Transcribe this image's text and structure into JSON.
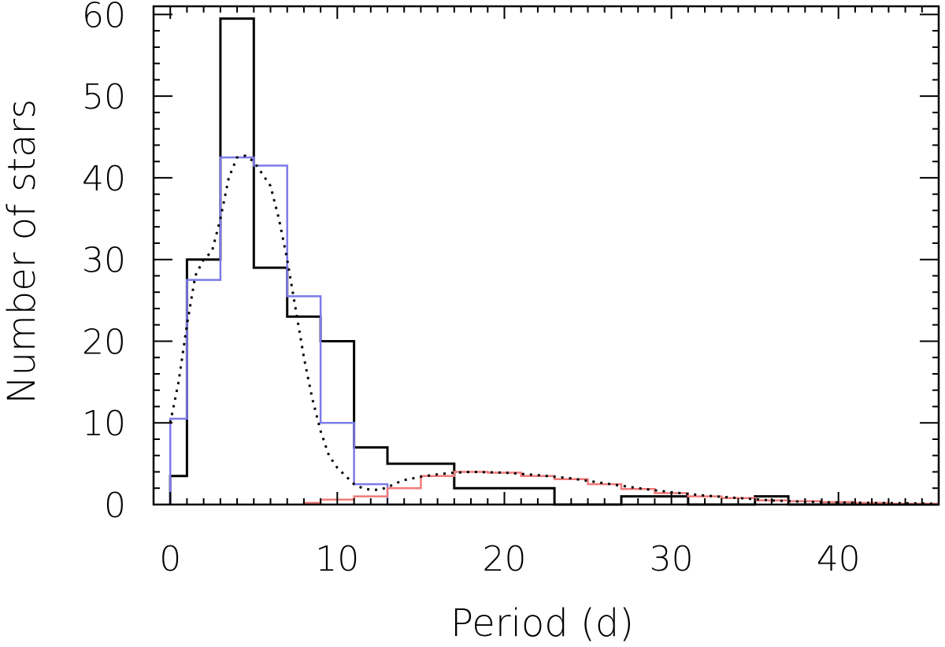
{
  "chart_data": {
    "type": "line",
    "title": "",
    "xlabel": "Period (d)",
    "ylabel": "Number of stars",
    "xlim": [
      -1,
      46
    ],
    "ylim": [
      0,
      61
    ],
    "xticks": [
      0,
      10,
      20,
      30,
      40
    ],
    "xtick_labels": [
      "0",
      "10",
      "20",
      "30",
      "40"
    ],
    "yticks": [
      0,
      10,
      20,
      30,
      40,
      50,
      60
    ],
    "ytick_labels": [
      "0",
      "10",
      "20",
      "30",
      "40",
      "50",
      "60"
    ],
    "x_minor_step": 1,
    "y_minor_step": 2,
    "grid": false,
    "legend": "none",
    "series": [
      {
        "style": "histogram",
        "color": "#000000",
        "edges": [
          0,
          1,
          3,
          5,
          7,
          9,
          11,
          13,
          17,
          23,
          27,
          31,
          35,
          37,
          46
        ],
        "values": [
          3.5,
          30,
          59.5,
          29,
          23,
          20,
          7,
          5,
          2,
          0,
          1,
          0,
          1,
          0
        ]
      },
      {
        "style": "histogram",
        "color": "#7b7bea",
        "edges": [
          0,
          1,
          3,
          5,
          7,
          9,
          11,
          13,
          14
        ],
        "values": [
          10.5,
          27.5,
          42.5,
          41.5,
          25.5,
          10,
          2.5,
          0
        ]
      },
      {
        "style": "histogram",
        "color": "#f07a7a",
        "edges": [
          8,
          9,
          11,
          13,
          15,
          17,
          19,
          21,
          23,
          25,
          27,
          29,
          31,
          33,
          35,
          37,
          39,
          41,
          43,
          46
        ],
        "values": [
          0.2,
          0.6,
          1,
          2,
          3.5,
          4,
          3.9,
          3.5,
          3.1,
          2.5,
          1.9,
          1.4,
          1,
          0.8,
          0.5,
          0.4,
          0.3,
          0.2,
          0.1
        ]
      },
      {
        "style": "dotted",
        "color": "#000000",
        "x": [
          0,
          0.5,
          1,
          1.5,
          2,
          2.5,
          3,
          3.5,
          4,
          4.5,
          5,
          5.5,
          6,
          6.5,
          7,
          7.5,
          8,
          8.5,
          9,
          9.5,
          10,
          10.5,
          11,
          11.5,
          12,
          12.5,
          13,
          13.5,
          14,
          15,
          16,
          17,
          18,
          20,
          22,
          24,
          26,
          28,
          30,
          32,
          34,
          36,
          38,
          40,
          42,
          44,
          46
        ],
        "y": [
          10,
          15,
          22,
          28,
          30,
          31,
          35,
          40,
          42.5,
          42.7,
          42,
          40.5,
          39,
          35,
          30,
          24,
          18,
          13,
          9,
          6,
          4.5,
          3.5,
          2.5,
          2,
          1.8,
          1.8,
          2.1,
          2.6,
          3,
          3.4,
          3.7,
          3.9,
          4,
          3.9,
          3.6,
          3.2,
          2.6,
          2.0,
          1.5,
          1.1,
          0.8,
          0.5,
          0.35,
          0.25,
          0.2,
          0.15,
          0.1
        ]
      }
    ]
  }
}
